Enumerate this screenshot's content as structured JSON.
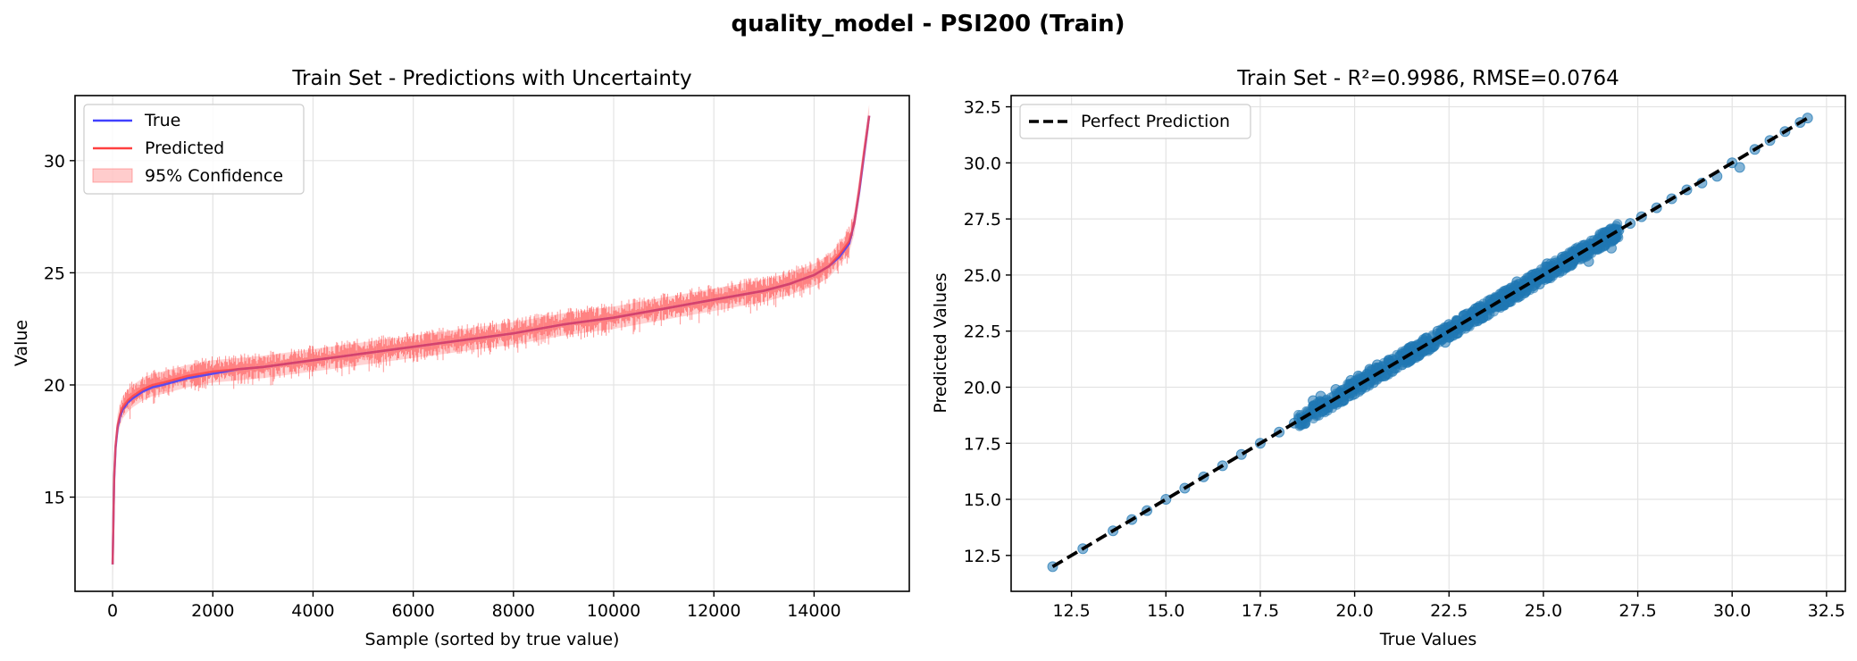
{
  "figure": {
    "suptitle": "quality_model - PSI200 (Train)"
  },
  "chart_data": [
    {
      "type": "line",
      "title": "Train Set - Predictions with Uncertainty",
      "xlabel": "Sample (sorted by true value)",
      "ylabel": "Value",
      "xlim": [
        -750,
        15900
      ],
      "ylim": [
        10.8,
        32.9
      ],
      "xticks": [
        0,
        2000,
        4000,
        6000,
        8000,
        10000,
        12000,
        14000
      ],
      "xtick_labels": [
        "0",
        "2000",
        "4000",
        "6000",
        "8000",
        "10000",
        "12000",
        "14000"
      ],
      "yticks": [
        15,
        20,
        25,
        30
      ],
      "ytick_labels": [
        "15",
        "20",
        "25",
        "30"
      ],
      "grid": true,
      "legend_position": "top-left",
      "series": [
        {
          "name": "True",
          "color": "#4040ff",
          "x": [
            0,
            30,
            60,
            100,
            150,
            200,
            300,
            400,
            600,
            800,
            1000,
            1500,
            2000,
            2500,
            3000,
            4000,
            5000,
            6000,
            7000,
            8000,
            9000,
            10000,
            11000,
            12000,
            13000,
            13500,
            14000,
            14300,
            14500,
            14700,
            14800,
            14900,
            15000,
            15100
          ],
          "y": [
            12.0,
            15.8,
            17.2,
            18.1,
            18.6,
            18.9,
            19.2,
            19.4,
            19.7,
            19.9,
            20.0,
            20.3,
            20.5,
            20.7,
            20.8,
            21.1,
            21.4,
            21.7,
            22.0,
            22.3,
            22.7,
            23.0,
            23.4,
            23.8,
            24.2,
            24.5,
            24.9,
            25.3,
            25.7,
            26.3,
            27.2,
            28.6,
            30.3,
            32.0
          ]
        },
        {
          "name": "Predicted",
          "color": "#ff4040",
          "x": [
            0,
            30,
            60,
            100,
            150,
            200,
            300,
            400,
            600,
            800,
            1000,
            1500,
            2000,
            2500,
            3000,
            4000,
            5000,
            6000,
            7000,
            8000,
            9000,
            10000,
            11000,
            12000,
            13000,
            13500,
            14000,
            14300,
            14500,
            14700,
            14800,
            14900,
            15000,
            15100
          ],
          "y": [
            12.0,
            15.9,
            17.3,
            18.2,
            18.7,
            19.0,
            19.3,
            19.5,
            19.8,
            20.0,
            20.1,
            20.4,
            20.6,
            20.7,
            20.8,
            21.1,
            21.4,
            21.7,
            22.0,
            22.3,
            22.7,
            23.0,
            23.4,
            23.8,
            24.2,
            24.5,
            24.9,
            25.3,
            25.8,
            26.4,
            27.2,
            28.7,
            30.4,
            32.0
          ]
        },
        {
          "name": "95% Confidence",
          "color": "#ff8080",
          "band_halfwidth": 0.5
        }
      ]
    },
    {
      "type": "scatter",
      "title": "Train Set - R²=0.9986, RMSE=0.0764",
      "xlabel": "True Values",
      "ylabel": "Predicted Values",
      "xlim": [
        10.9,
        33.0
      ],
      "ylim": [
        10.9,
        33.0
      ],
      "xticks": [
        12.5,
        15.0,
        17.5,
        20.0,
        22.5,
        25.0,
        27.5,
        30.0,
        32.5
      ],
      "xtick_labels": [
        "12.5",
        "15.0",
        "17.5",
        "20.0",
        "22.5",
        "25.0",
        "27.5",
        "30.0",
        "32.5"
      ],
      "yticks": [
        12.5,
        15.0,
        17.5,
        20.0,
        22.5,
        25.0,
        27.5,
        30.0,
        32.5
      ],
      "ytick_labels": [
        "12.5",
        "15.0",
        "17.5",
        "20.0",
        "22.5",
        "25.0",
        "27.5",
        "30.0",
        "32.5"
      ],
      "grid": true,
      "legend_position": "top-left",
      "scatter_color": "#1f77b4",
      "perfect_line": {
        "name": "Perfect Prediction",
        "color": "#000000",
        "from": [
          12.0,
          12.0
        ],
        "to": [
          32.0,
          32.0
        ]
      },
      "points": [
        [
          12.0,
          12.0
        ],
        [
          12.8,
          12.8
        ],
        [
          13.6,
          13.6
        ],
        [
          14.1,
          14.1
        ],
        [
          14.5,
          14.5
        ],
        [
          15.0,
          15.0
        ],
        [
          15.5,
          15.5
        ],
        [
          16.0,
          16.0
        ],
        [
          16.5,
          16.5
        ],
        [
          17.0,
          17.0
        ],
        [
          17.5,
          17.5
        ],
        [
          18.0,
          18.0
        ],
        [
          18.4,
          18.4
        ],
        [
          18.8,
          18.8
        ],
        [
          18.9,
          19.4
        ],
        [
          19.1,
          19.6
        ],
        [
          19.3,
          19.1
        ],
        [
          19.5,
          19.9
        ],
        [
          19.7,
          19.4
        ],
        [
          19.9,
          20.3
        ],
        [
          20.0,
          19.7
        ],
        [
          20.1,
          20.5
        ],
        [
          20.2,
          20.0
        ],
        [
          20.4,
          20.8
        ],
        [
          20.5,
          20.2
        ],
        [
          20.6,
          21.0
        ],
        [
          20.8,
          20.5
        ],
        [
          20.9,
          21.2
        ],
        [
          21.0,
          20.7
        ],
        [
          21.2,
          21.4
        ],
        [
          21.4,
          21.1
        ],
        [
          21.5,
          21.8
        ],
        [
          21.7,
          21.4
        ],
        [
          21.9,
          22.2
        ],
        [
          22.0,
          21.7
        ],
        [
          22.2,
          22.5
        ],
        [
          22.4,
          22.0
        ],
        [
          22.5,
          22.8
        ],
        [
          22.7,
          22.4
        ],
        [
          22.9,
          23.2
        ],
        [
          23.0,
          22.8
        ],
        [
          23.2,
          23.5
        ],
        [
          23.4,
          23.1
        ],
        [
          23.6,
          23.9
        ],
        [
          23.8,
          23.6
        ],
        [
          24.0,
          24.3
        ],
        [
          24.1,
          23.8
        ],
        [
          24.3,
          24.7
        ],
        [
          24.5,
          24.2
        ],
        [
          24.7,
          25.0
        ],
        [
          24.9,
          24.6
        ],
        [
          25.1,
          25.5
        ],
        [
          25.3,
          25.1
        ],
        [
          25.5,
          25.8
        ],
        [
          25.8,
          25.6
        ],
        [
          26.0,
          26.2
        ],
        [
          26.2,
          25.6
        ],
        [
          26.6,
          26.7
        ],
        [
          26.8,
          26.2
        ],
        [
          27.0,
          27.0
        ],
        [
          27.3,
          27.3
        ],
        [
          27.6,
          27.6
        ],
        [
          28.0,
          28.0
        ],
        [
          28.4,
          28.4
        ],
        [
          28.8,
          28.8
        ],
        [
          29.2,
          29.1
        ],
        [
          29.6,
          29.4
        ],
        [
          30.0,
          30.0
        ],
        [
          30.2,
          29.8
        ],
        [
          30.6,
          30.6
        ],
        [
          31.0,
          31.0
        ],
        [
          31.4,
          31.4
        ],
        [
          31.8,
          31.8
        ],
        [
          32.0,
          32.0
        ]
      ]
    }
  ]
}
